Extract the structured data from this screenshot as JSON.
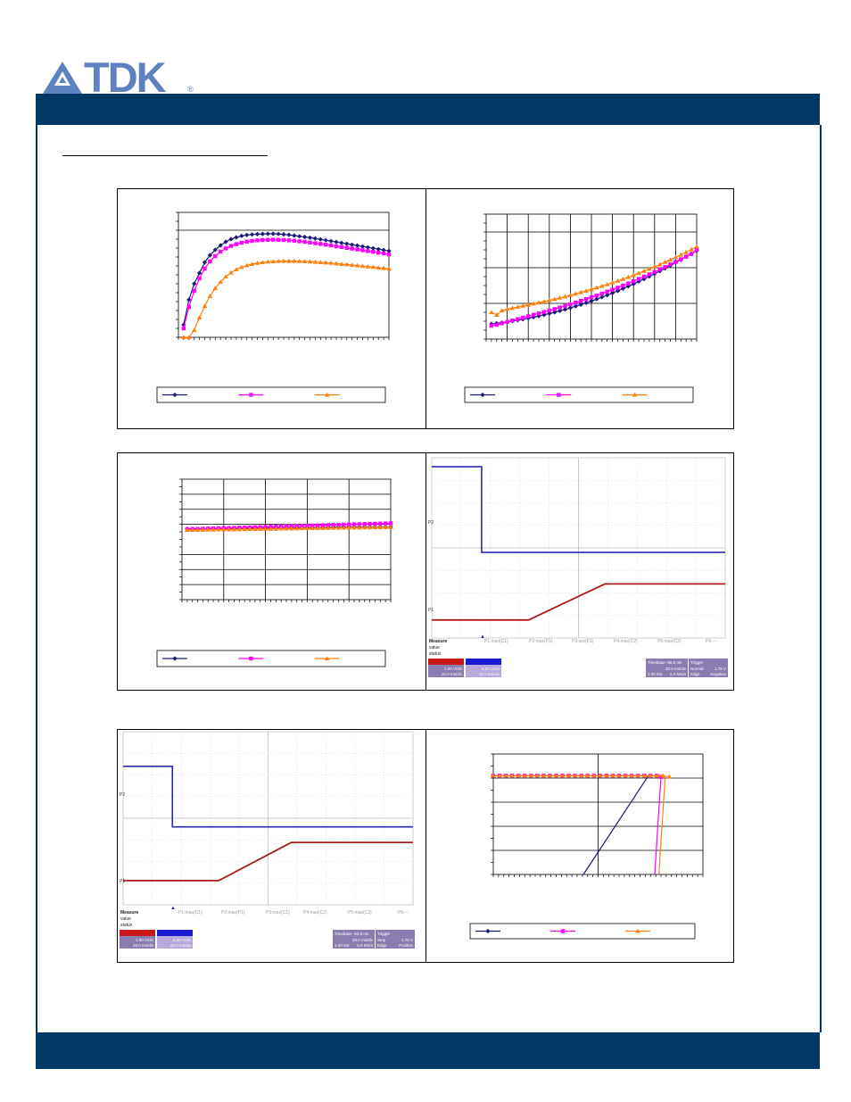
{
  "brand": {
    "name": "TDK",
    "registered": "®",
    "logo_color": "#5e82bf",
    "bar_color": "#003865"
  },
  "chart_data": [
    {
      "type": "line",
      "x": [
        1,
        2,
        3,
        4,
        5,
        6,
        7,
        8,
        9,
        10,
        11,
        12,
        13,
        14,
        15,
        16,
        17,
        18,
        19,
        20,
        21,
        22,
        23,
        24,
        25,
        26,
        27,
        28,
        29,
        30,
        31,
        32,
        33,
        34,
        35,
        36,
        37,
        38,
        39,
        40
      ],
      "xlim": [
        0,
        40
      ],
      "ylim": [
        0,
        7
      ],
      "series": [
        {
          "color": "#1a1a7a",
          "marker": "diamond",
          "values": [
            0.7,
            2.1,
            3.0,
            3.6,
            4.2,
            4.6,
            4.9,
            5.15,
            5.35,
            5.5,
            5.6,
            5.68,
            5.73,
            5.76,
            5.78,
            5.79,
            5.8,
            5.8,
            5.79,
            5.77,
            5.74,
            5.7,
            5.66,
            5.62,
            5.58,
            5.53,
            5.49,
            5.44,
            5.39,
            5.34,
            5.29,
            5.24,
            5.19,
            5.14,
            5.09,
            5.04,
            4.99,
            4.94,
            4.89,
            4.84
          ]
        },
        {
          "color": "#ff00ff",
          "marker": "square",
          "values": [
            0.5,
            1.7,
            2.6,
            3.3,
            3.85,
            4.25,
            4.55,
            4.8,
            4.98,
            5.12,
            5.22,
            5.3,
            5.36,
            5.4,
            5.43,
            5.45,
            5.46,
            5.47,
            5.46,
            5.45,
            5.43,
            5.41,
            5.38,
            5.35,
            5.31,
            5.27,
            5.23,
            5.19,
            5.15,
            5.1,
            5.06,
            5.01,
            4.97,
            4.92,
            4.88,
            4.83,
            4.79,
            4.74,
            4.7,
            4.65
          ]
        },
        {
          "color": "#ff7f0e",
          "marker": "triangle",
          "values": [
            0,
            0,
            0.4,
            1.1,
            1.75,
            2.3,
            2.75,
            3.1,
            3.4,
            3.62,
            3.8,
            3.93,
            4.03,
            4.1,
            4.16,
            4.2,
            4.23,
            4.25,
            4.26,
            4.27,
            4.27,
            4.27,
            4.26,
            4.25,
            4.24,
            4.22,
            4.2,
            4.18,
            4.16,
            4.13,
            4.1,
            4.08,
            4.05,
            4.02,
            3.99,
            3.96,
            3.93,
            3.9,
            3.87,
            3.84
          ]
        }
      ]
    },
    {
      "type": "line",
      "x": [
        1,
        2,
        3,
        4,
        5,
        6,
        7,
        8,
        9,
        10,
        11,
        12,
        13,
        14,
        15,
        16,
        17,
        18,
        19,
        20,
        21,
        22,
        23,
        24,
        25,
        26,
        27,
        28,
        29,
        30,
        31,
        32,
        33,
        34,
        35,
        36,
        37,
        38,
        39,
        40
      ],
      "xlim": [
        0,
        40
      ],
      "ylim": [
        0,
        7
      ],
      "series": [
        {
          "color": "#1a1a7a",
          "marker": "diamond",
          "values": [
            0.85,
            0.88,
            0.92,
            0.96,
            1.01,
            1.06,
            1.11,
            1.17,
            1.23,
            1.29,
            1.36,
            1.43,
            1.5,
            1.58,
            1.66,
            1.75,
            1.84,
            1.93,
            2.03,
            2.13,
            2.24,
            2.35,
            2.46,
            2.58,
            2.7,
            2.83,
            2.96,
            3.09,
            3.23,
            3.37,
            3.51,
            3.66,
            3.81,
            3.96,
            4.12,
            4.28,
            4.44,
            4.61,
            4.78,
            4.95
          ]
        },
        {
          "color": "#ff00ff",
          "marker": "square",
          "values": [
            0.75,
            0.8,
            0.88,
            0.96,
            1.04,
            1.12,
            1.2,
            1.28,
            1.36,
            1.44,
            1.52,
            1.6,
            1.68,
            1.77,
            1.86,
            1.95,
            2.04,
            2.14,
            2.24,
            2.34,
            2.44,
            2.55,
            2.66,
            2.77,
            2.88,
            3.0,
            3.12,
            3.24,
            3.37,
            3.5,
            3.63,
            3.76,
            3.9,
            4.04,
            4.18,
            4.32,
            4.47,
            4.62,
            4.77,
            5.0
          ]
        },
        {
          "color": "#ff7f0e",
          "marker": "triangle",
          "values": [
            1.5,
            1.35,
            1.6,
            1.68,
            1.74,
            1.8,
            1.86,
            1.92,
            1.98,
            2.04,
            2.1,
            2.17,
            2.24,
            2.31,
            2.38,
            2.46,
            2.54,
            2.62,
            2.7,
            2.79,
            2.88,
            2.97,
            3.06,
            3.16,
            3.26,
            3.36,
            3.47,
            3.58,
            3.69,
            3.81,
            3.93,
            4.05,
            4.18,
            4.31,
            4.44,
            4.58,
            4.72,
            4.87,
            5.02,
            5.18
          ]
        }
      ]
    },
    {
      "type": "line",
      "x": [
        1,
        2,
        3,
        4,
        5,
        6,
        7,
        8,
        9,
        10,
        11,
        12,
        13,
        14,
        15,
        16,
        17,
        18,
        19,
        20,
        21,
        22,
        23,
        24,
        25,
        26,
        27,
        28,
        29,
        30,
        31,
        32,
        33,
        34,
        35,
        36,
        37,
        38,
        39,
        40
      ],
      "xlim": [
        0,
        40
      ],
      "ylim": [
        0,
        8
      ],
      "series": [
        {
          "color": "#1a1a7a",
          "marker": "diamond",
          "values": [
            4.7,
            4.7,
            4.7,
            4.71,
            4.71,
            4.71,
            4.72,
            4.72,
            4.72,
            4.73,
            4.73,
            4.73,
            4.74,
            4.74,
            4.74,
            4.75,
            4.75,
            4.75,
            4.76,
            4.76,
            4.76,
            4.77,
            4.77,
            4.77,
            4.78,
            4.78,
            4.78,
            4.79,
            4.79,
            4.79,
            4.8,
            4.8,
            4.8,
            4.81,
            4.81,
            4.81,
            4.82,
            4.82,
            4.82,
            4.83
          ]
        },
        {
          "color": "#ff00ff",
          "marker": "square",
          "values": [
            4.68,
            4.69,
            4.7,
            4.71,
            4.72,
            4.73,
            4.74,
            4.75,
            4.76,
            4.77,
            4.78,
            4.79,
            4.8,
            4.81,
            4.82,
            4.83,
            4.84,
            4.85,
            4.86,
            4.87,
            4.88,
            4.89,
            4.9,
            4.91,
            4.92,
            4.93,
            4.94,
            4.95,
            4.96,
            4.97,
            4.98,
            4.99,
            5.0,
            5.01,
            5.02,
            5.03,
            5.04,
            5.05,
            5.06,
            5.07
          ]
        },
        {
          "color": "#ff7f0e",
          "marker": "triangle",
          "values": [
            4.62,
            4.62,
            4.63,
            4.63,
            4.64,
            4.64,
            4.65,
            4.65,
            4.66,
            4.66,
            4.67,
            4.67,
            4.68,
            4.68,
            4.69,
            4.69,
            4.7,
            4.7,
            4.71,
            4.71,
            4.72,
            4.72,
            4.73,
            4.73,
            4.74,
            4.74,
            4.75,
            4.75,
            4.76,
            4.76,
            4.77,
            4.77,
            4.78,
            4.78,
            4.79,
            4.79,
            4.8,
            4.8,
            4.81,
            4.81
          ]
        }
      ]
    },
    {
      "type": "line",
      "xlim": [
        0,
        100
      ],
      "ylim": [
        0,
        5
      ],
      "series": [
        {
          "color": "#1a1a7a",
          "marker": "line",
          "x": [
            43,
            74
          ],
          "values": [
            0,
            4.1
          ]
        },
        {
          "color": "#ff00ff",
          "marker": "square",
          "x": [
            0,
            3,
            6,
            9,
            12,
            15,
            18,
            21,
            24,
            27,
            30,
            33,
            36,
            39,
            42,
            45,
            48,
            51,
            54,
            57,
            60,
            63,
            66,
            69,
            72,
            75,
            78,
            80
          ],
          "values": [
            4.1,
            4.1,
            4.1,
            4.1,
            4.1,
            4.1,
            4.1,
            4.1,
            4.1,
            4.1,
            4.1,
            4.1,
            4.1,
            4.1,
            4.1,
            4.1,
            4.1,
            4.1,
            4.1,
            4.1,
            4.1,
            4.1,
            4.1,
            4.1,
            4.1,
            4.1,
            4.1,
            4.05
          ]
        },
        {
          "color": "#ff00ff",
          "marker": "line",
          "x": [
            80,
            77
          ],
          "values": [
            4.05,
            0
          ]
        },
        {
          "color": "#ff7f0e",
          "marker": "triangle",
          "x": [
            0,
            3,
            6,
            9,
            12,
            15,
            18,
            21,
            24,
            27,
            30,
            33,
            36,
            39,
            42,
            45,
            48,
            51,
            54,
            57,
            60,
            63,
            66,
            69,
            72,
            75,
            78,
            81,
            84
          ],
          "values": [
            4.1,
            4.1,
            4.1,
            4.1,
            4.1,
            4.1,
            4.1,
            4.1,
            4.1,
            4.1,
            4.1,
            4.1,
            4.1,
            4.1,
            4.1,
            4.1,
            4.1,
            4.1,
            4.1,
            4.1,
            4.1,
            4.1,
            4.1,
            4.1,
            4.1,
            4.1,
            4.1,
            4.1,
            4.05
          ]
        },
        {
          "color": "#ff7f0e",
          "marker": "line",
          "x": [
            82,
            79
          ],
          "values": [
            4.05,
            0
          ]
        }
      ]
    }
  ],
  "scope_1": {
    "labels": {
      "ch_top": "P2",
      "ch_bottom": "P1",
      "meas_1": "P1:max(C1)",
      "meas_2": "P2:max(P1)",
      "meas_3": "P3:sec(F1)",
      "meas_4": "P4:max(C2)",
      "meas_5": "P5:max(C3)",
      "meas_6": "P6:---",
      "measure": "Measure",
      "value": "value",
      "status": "status",
      "c1_vdiv": "1.00 V/div",
      "c1_tdiv": "20.0 ms/div",
      "c2_vdiv": "5.00 V/div",
      "c2_tdiv": "20.0 ms/div",
      "timebase": "Timebase -65.6 ms",
      "trigger": "Trigger",
      "tb_1": "20.0 ms/div",
      "tb_2": "1.00 MS",
      "tb_3": "5.0 MS/s",
      "trig_1": "Normal",
      "trig_2": "1.75 V",
      "trig_3": "Edge",
      "trig_4": "Negative"
    },
    "traces": {
      "top": {
        "color": "#2a2ab0",
        "high": 1.9,
        "low": 0.95,
        "step_at": 0.17
      },
      "bottom": {
        "color": "#b01a1a",
        "low": 0.2,
        "high": 0.6,
        "ramp_start": 0.33,
        "ramp_end": 0.59
      }
    }
  },
  "scope_2": {
    "labels": {
      "ch_top": "P2",
      "ch_bottom": "P1",
      "meas_1": "P1:max(C1)",
      "meas_2": "P2:max(P1)",
      "meas_3": "P3:max(C1)",
      "meas_4": "P4:max(C2)",
      "meas_5": "P5:max(C3)",
      "meas_6": "P6:---",
      "measure": "Measure",
      "value": "value",
      "status": "status",
      "c1_vdiv": "1.00 V/div",
      "c1_tdiv": "20.0 ms/div",
      "c2_vdiv": "5.00 V/div",
      "c2_tdiv": "20.0 ms/div",
      "timebase": "Timebase -60.8 ms",
      "trigger": "Trigger",
      "tb_1": "20.0 ms/div",
      "tb_2": "1.00 MS",
      "tb_3": "5.0 MS/s",
      "trig_1": "Stop",
      "trig_2": "1.75 V",
      "trig_3": "Edge",
      "trig_4": "Positive"
    },
    "traces": {
      "top": {
        "color": "#2a2ab0",
        "high": 1.6,
        "low": 0.9,
        "step_at": 0.17
      },
      "bottom": {
        "color": "#b01a1a",
        "low": 0.28,
        "high": 0.72,
        "ramp_start": 0.33,
        "ramp_end": 0.58
      }
    }
  }
}
